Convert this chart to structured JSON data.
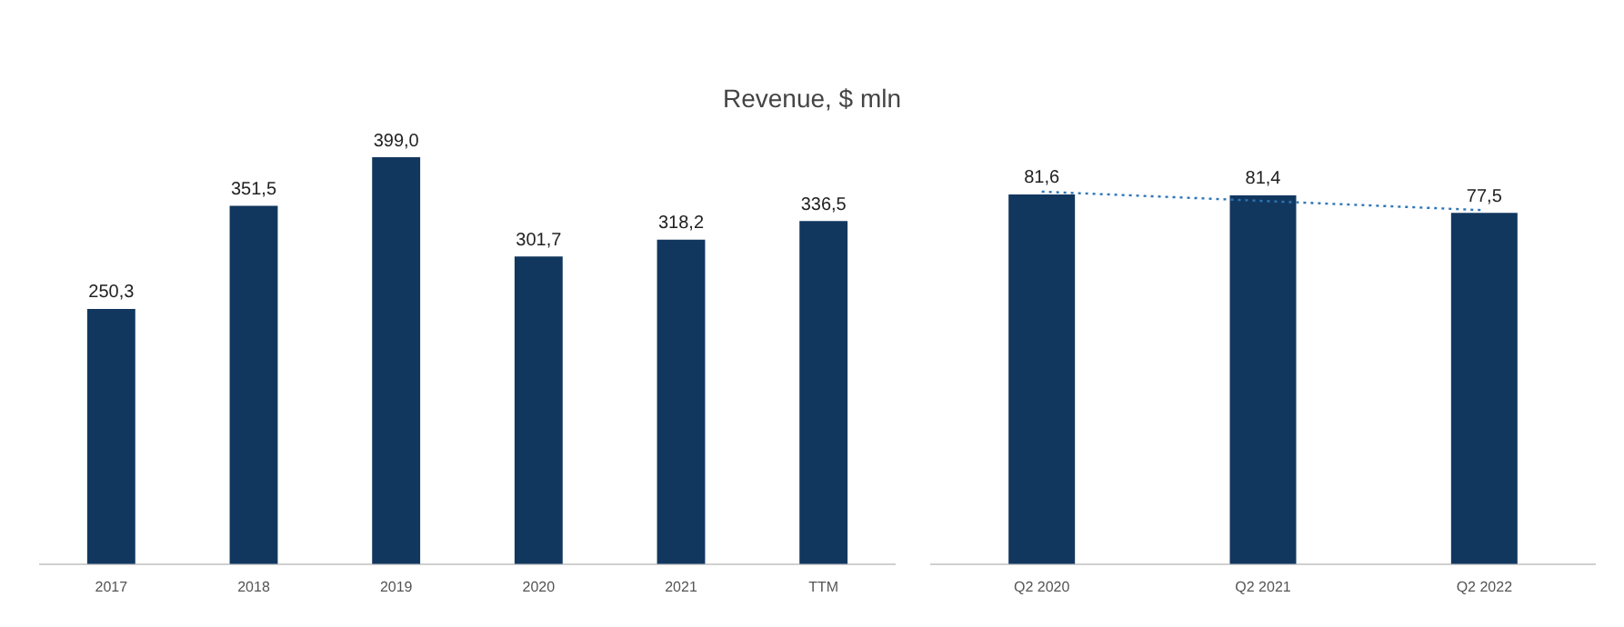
{
  "chart_data": [
    {
      "type": "bar",
      "title": "Revenue, $ mln",
      "categories": [
        "2017",
        "2018",
        "2019",
        "2020",
        "2021",
        "TTM"
      ],
      "tick_labels": "x",
      "series": [
        {
          "color": "#12375f",
          "values": [
            250.3,
            351.5,
            399.0,
            301.7,
            318.2,
            336.5
          ],
          "value_labels": [
            "250,3",
            "351,5",
            "399,0",
            "301,7",
            "318,2",
            "336,5"
          ]
        }
      ]
    },
    {
      "type": "bar",
      "categories": [
        "Q2 2020",
        "Q2 2021",
        "Q2 2022"
      ],
      "tick_labels": "x",
      "series": [
        {
          "color": "#12375f",
          "values": [
            81.6,
            81.4,
            77.5
          ],
          "value_labels": [
            "81,6",
            "81,4",
            "77,5"
          ]
        },
        {
          "type": "line",
          "color": "#2e75b6",
          "line_style": "dotted",
          "marker": "none",
          "x": [
            "Q2 2020",
            "Q2 2022"
          ],
          "values": [
            82.2,
            78.1
          ]
        }
      ]
    }
  ]
}
